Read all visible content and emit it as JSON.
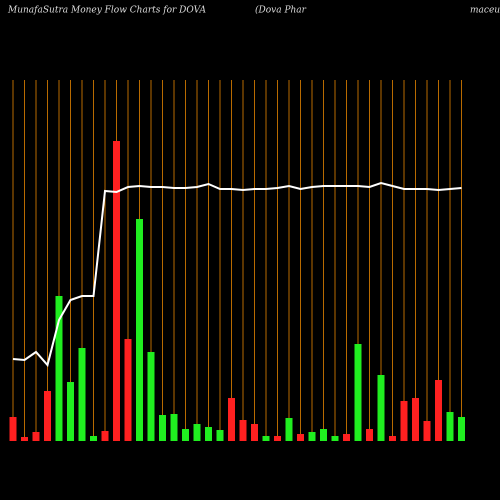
{
  "chart_data": {
    "type": "bar",
    "title": "MunafaSutra  Money Flow  Charts for DOVA",
    "subtitle_parts": [
      "(Dova  Phar",
      "maceuticals"
    ],
    "grid_color": "#b86a00",
    "line_color": "#ffffff",
    "categories": [
      null,
      null,
      null,
      null,
      null,
      null,
      null,
      null,
      null,
      null,
      null,
      null,
      null,
      null,
      null,
      null,
      null,
      null,
      null,
      null,
      null,
      null,
      null,
      null,
      null,
      null,
      null,
      null,
      null,
      null,
      null,
      null,
      null,
      null,
      null,
      null,
      null,
      null,
      null,
      null
    ],
    "ylim": [
      0,
      361
    ],
    "series": [
      {
        "name": null,
        "type": "bar",
        "colors": [
          "#ff2020",
          "#ff2020",
          "#ff2020",
          "#ff2020",
          "#20ee20",
          "#20ee20",
          "#20ee20",
          "#20ee20",
          "#ff2020",
          "#ff2020",
          "#ff2020",
          "#20ee20",
          "#20ee20",
          "#20ee20",
          "#20ee20",
          "#20ee20",
          "#20ee20",
          "#20ee20",
          "#20ee20",
          "#ff2020",
          "#ff2020",
          "#ff2020",
          "#20ee20",
          "#ff2020",
          "#20ee20",
          "#ff2020",
          "#20ee20",
          "#20ee20",
          "#20ee20",
          "#ff2020",
          "#20ee20",
          "#ff2020",
          "#20ee20",
          "#ff2020",
          "#ff2020",
          "#ff2020",
          "#ff2020",
          "#ff2020",
          "#20ee20",
          "#20ee20"
        ],
        "values": [
          24,
          4,
          9,
          50,
          145,
          59,
          93,
          5,
          10,
          300,
          102,
          222,
          89,
          26,
          27,
          12,
          17,
          14,
          11,
          43,
          21,
          17,
          5,
          5,
          23,
          7,
          9,
          12,
          5,
          7,
          97,
          12,
          66,
          5,
          40,
          43,
          20,
          61,
          29,
          24
        ]
      },
      {
        "name": null,
        "type": "line",
        "values": [
          82,
          81,
          89,
          76,
          121,
          141,
          145,
          145,
          250,
          249,
          254,
          255,
          254,
          254,
          253,
          253,
          254,
          257,
          252,
          252,
          251,
          252,
          252,
          253,
          255,
          252,
          254,
          255,
          255,
          255,
          255,
          254,
          258,
          255,
          252,
          252,
          252,
          251,
          252,
          253
        ]
      }
    ]
  }
}
